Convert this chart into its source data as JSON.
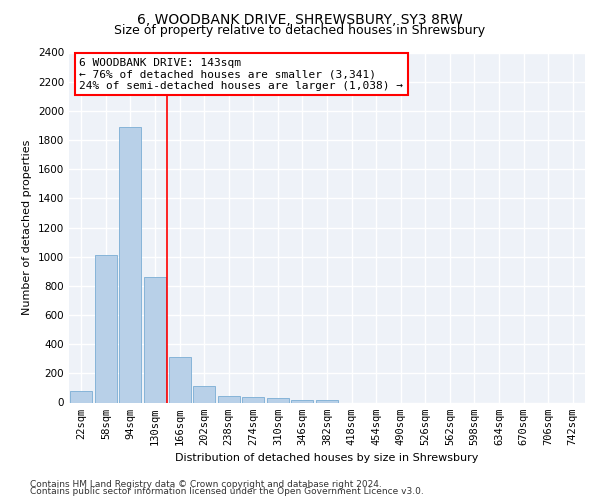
{
  "title": "6, WOODBANK DRIVE, SHREWSBURY, SY3 8RW",
  "subtitle": "Size of property relative to detached houses in Shrewsbury",
  "xlabel": "Distribution of detached houses by size in Shrewsbury",
  "ylabel": "Number of detached properties",
  "categories": [
    "22sqm",
    "58sqm",
    "94sqm",
    "130sqm",
    "166sqm",
    "202sqm",
    "238sqm",
    "274sqm",
    "310sqm",
    "346sqm",
    "382sqm",
    "418sqm",
    "454sqm",
    "490sqm",
    "526sqm",
    "562sqm",
    "598sqm",
    "634sqm",
    "670sqm",
    "706sqm",
    "742sqm"
  ],
  "values": [
    80,
    1010,
    1890,
    860,
    315,
    115,
    48,
    38,
    28,
    20,
    15,
    0,
    0,
    0,
    0,
    0,
    0,
    0,
    0,
    0,
    0
  ],
  "bar_color": "#b8d0e8",
  "bar_edge_color": "#7aadd4",
  "property_line_value": 3.5,
  "property_line_color": "red",
  "annotation_text": "6 WOODBANK DRIVE: 143sqm\n← 76% of detached houses are smaller (3,341)\n24% of semi-detached houses are larger (1,038) →",
  "annotation_box_color": "white",
  "annotation_box_edge_color": "red",
  "ylim": [
    0,
    2400
  ],
  "yticks": [
    0,
    200,
    400,
    600,
    800,
    1000,
    1200,
    1400,
    1600,
    1800,
    2000,
    2200,
    2400
  ],
  "footer_line1": "Contains HM Land Registry data © Crown copyright and database right 2024.",
  "footer_line2": "Contains public sector information licensed under the Open Government Licence v3.0.",
  "bg_color": "#eef2f8",
  "grid_color": "white",
  "title_fontsize": 10,
  "subtitle_fontsize": 9,
  "axis_label_fontsize": 8,
  "tick_fontsize": 7.5,
  "footer_fontsize": 6.5,
  "annotation_fontsize": 8
}
